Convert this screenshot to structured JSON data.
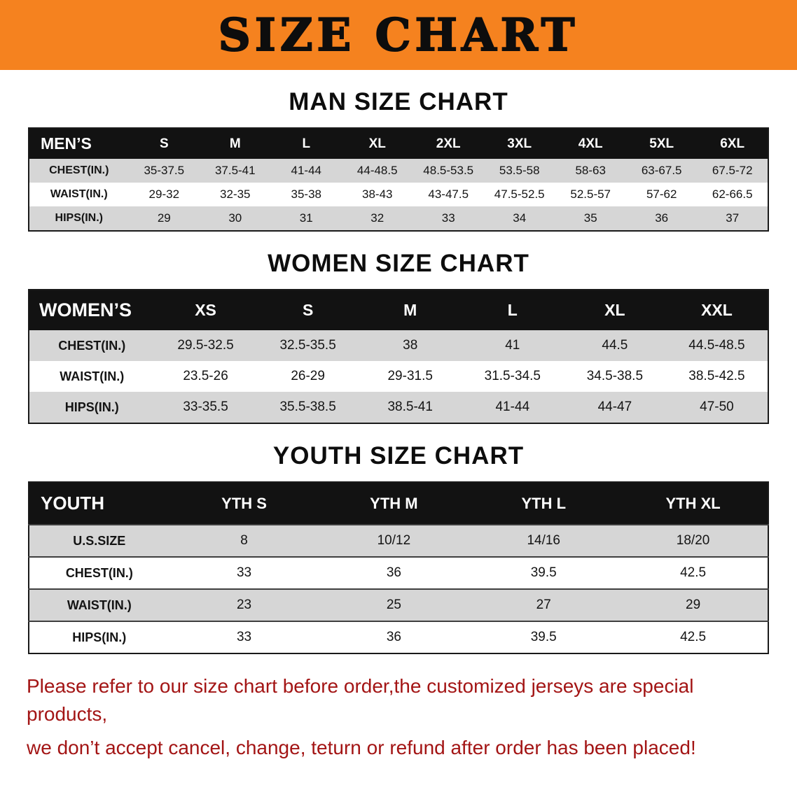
{
  "banner": {
    "title": "SIZE CHART"
  },
  "colors": {
    "banner_bg": "#f5821f",
    "table_header_bg": "#121212",
    "row_stripe": "#d6d6d6",
    "disclaimer_text": "#a31515"
  },
  "sections": [
    {
      "id": "men",
      "heading": "MAN SIZE CHART",
      "table": {
        "header": [
          "MEN’S",
          "S",
          "M",
          "L",
          "XL",
          "2XL",
          "3XL",
          "4XL",
          "5XL",
          "6XL"
        ],
        "rows": [
          [
            "CHEST(IN.)",
            "35-37.5",
            "37.5-41",
            "41-44",
            "44-48.5",
            "48.5-53.5",
            "53.5-58",
            "58-63",
            "63-67.5",
            "67.5-72"
          ],
          [
            "WAIST(IN.)",
            "29-32",
            "32-35",
            "35-38",
            "38-43",
            "43-47.5",
            "47.5-52.5",
            "52.5-57",
            "57-62",
            "62-66.5"
          ],
          [
            "HIPS(IN.)",
            "29",
            "30",
            "31",
            "32",
            "33",
            "34",
            "35",
            "36",
            "37"
          ]
        ]
      }
    },
    {
      "id": "women",
      "heading": "WOMEN SIZE CHART",
      "table": {
        "header": [
          "WOMEN’S",
          "XS",
          "S",
          "M",
          "L",
          "XL",
          "XXL"
        ],
        "rows": [
          [
            "CHEST(IN.)",
            "29.5-32.5",
            "32.5-35.5",
            "38",
            "41",
            "44.5",
            "44.5-48.5"
          ],
          [
            "WAIST(IN.)",
            "23.5-26",
            "26-29",
            "29-31.5",
            "31.5-34.5",
            "34.5-38.5",
            "38.5-42.5"
          ],
          [
            "HIPS(IN.)",
            "33-35.5",
            "35.5-38.5",
            "38.5-41",
            "41-44",
            "44-47",
            "47-50"
          ]
        ]
      }
    },
    {
      "id": "youth",
      "heading": "YOUTH SIZE CHART",
      "table": {
        "header": [
          "YOUTH",
          "YTH S",
          "YTH M",
          "YTH L",
          "YTH XL"
        ],
        "rows": [
          [
            "U.S.SIZE",
            "8",
            "10/12",
            "14/16",
            "18/20"
          ],
          [
            "CHEST(IN.)",
            "33",
            "36",
            "39.5",
            "42.5"
          ],
          [
            "WAIST(IN.)",
            "23",
            "25",
            "27",
            "29"
          ],
          [
            "HIPS(IN.)",
            "33",
            "36",
            "39.5",
            "42.5"
          ]
        ]
      }
    }
  ],
  "disclaimer": {
    "line1": "Please refer to our size chart before order,the customized jerseys are special products,",
    "line2": "we don’t accept cancel, change, teturn or refund after order has been placed!"
  }
}
